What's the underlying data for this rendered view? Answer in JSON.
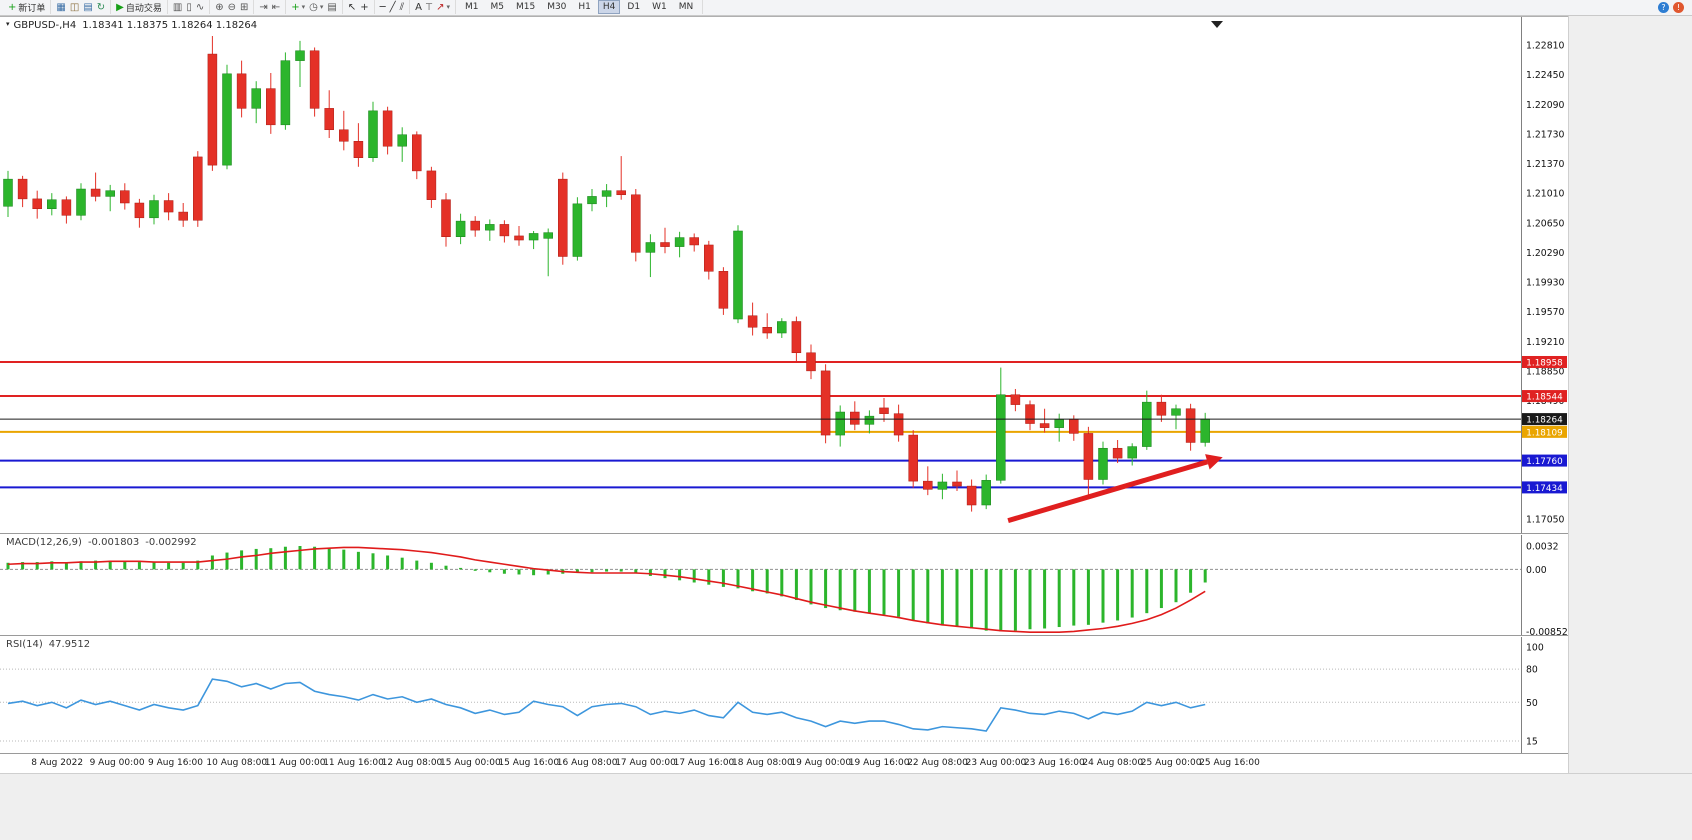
{
  "toolbar": {
    "groups": [
      {
        "items": [
          {
            "name": "new-order",
            "glyph": "+",
            "glyph_color": "#18a018",
            "label": "新订单"
          }
        ]
      },
      {
        "items": [
          {
            "name": "market-watch",
            "glyph": "▦",
            "glyph_color": "#3a6ea5"
          },
          {
            "name": "navigator",
            "glyph": "◫",
            "glyph_color": "#8a6d3b"
          },
          {
            "name": "terminal",
            "glyph": "▤",
            "glyph_color": "#3a6ea5"
          },
          {
            "name": "refresh",
            "glyph": "↻",
            "glyph_color": "#2e8b57"
          }
        ]
      },
      {
        "items": [
          {
            "name": "autotrading",
            "glyph": "▶",
            "glyph_color": "#18a018",
            "label": "自动交易"
          }
        ]
      },
      {
        "items": [
          {
            "name": "bar-chart",
            "glyph": "▥",
            "glyph_color": "#555555"
          },
          {
            "name": "candlestick-chart",
            "glyph": "▯",
            "glyph_color": "#555555"
          },
          {
            "name": "line-chart",
            "glyph": "∿",
            "glyph_color": "#555555"
          }
        ]
      },
      {
        "items": [
          {
            "name": "zoom-in",
            "glyph": "⊕",
            "glyph_color": "#555555"
          },
          {
            "name": "zoom-out",
            "glyph": "⊖",
            "glyph_color": "#555555"
          },
          {
            "name": "tile-windows",
            "glyph": "⊞",
            "glyph_color": "#555555"
          }
        ]
      },
      {
        "items": [
          {
            "name": "auto-scroll",
            "glyph": "⇥",
            "glyph_color": "#555555"
          },
          {
            "name": "chart-shift",
            "glyph": "⇤",
            "glyph_color": "#555555"
          }
        ]
      },
      {
        "items": [
          {
            "name": "indicators",
            "glyph": "+",
            "glyph_color": "#18a018",
            "caret": true
          },
          {
            "name": "periods",
            "glyph": "◷",
            "glyph_color": "#555555",
            "caret": true
          },
          {
            "name": "templates",
            "glyph": "▤",
            "glyph_color": "#555555"
          }
        ]
      },
      {
        "items": [
          {
            "name": "cursor",
            "glyph": "↖",
            "glyph_color": "#333333"
          },
          {
            "name": "crosshair",
            "glyph": "+",
            "glyph_color": "#333333"
          }
        ]
      },
      {
        "items": [
          {
            "name": "horizontal-line",
            "glyph": "─",
            "glyph_color": "#333333"
          },
          {
            "name": "trendline",
            "glyph": "╱",
            "glyph_color": "#333333"
          },
          {
            "name": "equidistant-channel",
            "glyph": "⫽",
            "glyph_color": "#333333"
          }
        ]
      },
      {
        "items": [
          {
            "name": "text",
            "glyph": "A",
            "glyph_color": "#333333"
          },
          {
            "name": "text-label",
            "glyph": "T",
            "glyph_color": "#888888"
          },
          {
            "name": "arrows",
            "glyph": "↗",
            "glyph_color": "#bb2222",
            "caret": true
          }
        ]
      },
      {
        "timeframes": true
      },
      {
        "align": "right",
        "items": [
          {
            "name": "community",
            "glyph": "?",
            "glyph_color": "#ffffff",
            "circle": "#2d7dd2"
          },
          {
            "name": "live-update",
            "glyph": "!",
            "glyph_color": "#ffffff",
            "circle": "#e0572f"
          }
        ]
      }
    ],
    "timeframes": [
      "M1",
      "M5",
      "M15",
      "M30",
      "H1",
      "H4",
      "D1",
      "W1",
      "MN"
    ],
    "active_timeframe": "H4"
  },
  "price_chart": {
    "marker_glyph": "▾",
    "symbol_period": "GBPUSD-,H4",
    "ohlc": "1.18341 1.18375 1.18264 1.18264"
  },
  "indicators": {
    "macd": {
      "label": "MACD(12,26,9)",
      "value_main": "-0.001803",
      "value_signal": "-0.002992"
    },
    "rsi": {
      "label": "RSI(14)",
      "value": "47.9512"
    }
  },
  "chart_data": [
    {
      "type": "candlestick",
      "title": "GBPUSD- H4",
      "x_labels": [
        "8 Aug 2022",
        "9 Aug 00:00",
        "9 Aug 16:00",
        "10 Aug 08:00",
        "11 Aug 00:00",
        "11 Aug 16:00",
        "12 Aug 08:00",
        "15 Aug 00:00",
        "15 Aug 16:00",
        "16 Aug 08:00",
        "17 Aug 00:00",
        "17 Aug 16:00",
        "18 Aug 08:00",
        "19 Aug 00:00",
        "19 Aug 16:00",
        "22 Aug 08:00",
        "23 Aug 00:00",
        "23 Aug 16:00",
        "24 Aug 08:00",
        "25 Aug 00:00",
        "25 Aug 16:00"
      ],
      "x_label_start": 2,
      "x_label_step": 4,
      "y_ticks": [
        1.2281,
        1.2245,
        1.2209,
        1.2173,
        1.2137,
        1.2101,
        1.2065,
        1.2029,
        1.1993,
        1.1957,
        1.1921,
        1.1885,
        1.1849,
        1.1813,
        1.1777,
        1.1741,
        1.1705
      ],
      "up_color": "#2cb52c",
      "down_color": "#e43127",
      "up_stroke": "#17801a",
      "down_stroke": "#aa1a12",
      "candles": [
        [
          1.2085,
          1.2128,
          1.2072,
          1.2118
        ],
        [
          1.2118,
          1.2122,
          1.2084,
          1.2094
        ],
        [
          1.2094,
          1.2104,
          1.207,
          1.2082
        ],
        [
          1.2082,
          1.2101,
          1.2074,
          1.2093
        ],
        [
          1.2093,
          1.2097,
          1.2064,
          1.2074
        ],
        [
          1.2074,
          1.2113,
          1.2068,
          1.2106
        ],
        [
          1.2106,
          1.2126,
          1.2091,
          1.2097
        ],
        [
          1.2097,
          1.2111,
          1.2079,
          1.2104
        ],
        [
          1.2104,
          1.2113,
          1.2081,
          1.2089
        ],
        [
          1.2089,
          1.2094,
          1.2059,
          1.2071
        ],
        [
          1.2071,
          1.2099,
          1.2063,
          1.2092
        ],
        [
          1.2092,
          1.2101,
          1.2068,
          1.2078
        ],
        [
          1.2078,
          1.2089,
          1.206,
          1.2068
        ],
        [
          1.2145,
          1.2152,
          1.206,
          1.2068
        ],
        [
          1.227,
          1.2292,
          1.2128,
          1.2135
        ],
        [
          1.2135,
          1.2257,
          1.213,
          1.2246
        ],
        [
          1.2246,
          1.2262,
          1.2193,
          1.2204
        ],
        [
          1.2204,
          1.2237,
          1.2186,
          1.2228
        ],
        [
          1.2228,
          1.2247,
          1.2173,
          1.2184
        ],
        [
          1.2184,
          1.2272,
          1.2178,
          1.2262
        ],
        [
          1.2262,
          1.2286,
          1.223,
          1.2274
        ],
        [
          1.2274,
          1.2278,
          1.2194,
          1.2204
        ],
        [
          1.2204,
          1.2226,
          1.2168,
          1.2178
        ],
        [
          1.2178,
          1.2201,
          1.2153,
          1.2164
        ],
        [
          1.2164,
          1.2186,
          1.2133,
          1.2144
        ],
        [
          1.2144,
          1.2212,
          1.2139,
          1.2201
        ],
        [
          1.2201,
          1.2206,
          1.2148,
          1.2158
        ],
        [
          1.2158,
          1.2181,
          1.2139,
          1.2172
        ],
        [
          1.2172,
          1.2176,
          1.2118,
          1.2128
        ],
        [
          1.2128,
          1.2133,
          1.2083,
          1.2093
        ],
        [
          1.2093,
          1.2101,
          1.2036,
          1.2048
        ],
        [
          1.2048,
          1.2076,
          1.2039,
          1.2067
        ],
        [
          1.2067,
          1.2073,
          1.2048,
          1.2056
        ],
        [
          1.2056,
          1.2069,
          1.2043,
          1.2063
        ],
        [
          1.2063,
          1.2068,
          1.2041,
          1.2049
        ],
        [
          1.2049,
          1.2061,
          1.2037,
          1.2044
        ],
        [
          1.2044,
          1.2055,
          1.2033,
          1.2052
        ],
        [
          1.2046,
          1.2058,
          1.2,
          1.2053
        ],
        [
          1.2118,
          1.2126,
          1.2014,
          1.2024
        ],
        [
          1.2024,
          1.2096,
          1.2019,
          1.2088
        ],
        [
          1.2088,
          1.2106,
          1.2079,
          1.2097
        ],
        [
          1.2097,
          1.2112,
          1.2084,
          1.2104
        ],
        [
          1.2104,
          1.2146,
          1.2093,
          1.2099
        ],
        [
          1.2099,
          1.2106,
          1.2018,
          1.2029
        ],
        [
          1.2029,
          1.2051,
          1.1999,
          1.2041
        ],
        [
          1.2041,
          1.2059,
          1.2028,
          1.2036
        ],
        [
          1.2036,
          1.2054,
          1.2023,
          1.2047
        ],
        [
          1.2047,
          1.2052,
          1.203,
          1.2038
        ],
        [
          1.2038,
          1.2043,
          1.1996,
          1.2006
        ],
        [
          1.2006,
          1.2011,
          1.1953,
          1.1961
        ],
        [
          1.1948,
          1.2062,
          1.1943,
          1.2055
        ],
        [
          1.1952,
          1.1968,
          1.1928,
          1.1938
        ],
        [
          1.1938,
          1.1955,
          1.1924,
          1.1931
        ],
        [
          1.1931,
          1.1949,
          1.1925,
          1.1945
        ],
        [
          1.1945,
          1.1951,
          1.1897,
          1.1907
        ],
        [
          1.1907,
          1.1917,
          1.1875,
          1.1885
        ],
        [
          1.1885,
          1.1893,
          1.1797,
          1.1807
        ],
        [
          1.1807,
          1.1843,
          1.1793,
          1.1835
        ],
        [
          1.1835,
          1.1848,
          1.1813,
          1.182
        ],
        [
          1.182,
          1.1837,
          1.1809,
          1.183
        ],
        [
          1.184,
          1.1852,
          1.1823,
          1.1833
        ],
        [
          1.1833,
          1.1844,
          1.1799,
          1.1807
        ],
        [
          1.1807,
          1.1813,
          1.1743,
          1.1751
        ],
        [
          1.1751,
          1.1769,
          1.1734,
          1.1741
        ],
        [
          1.1741,
          1.176,
          1.1729,
          1.175
        ],
        [
          1.175,
          1.1764,
          1.1739,
          1.1745
        ],
        [
          1.1745,
          1.1753,
          1.1714,
          1.1722
        ],
        [
          1.1722,
          1.1759,
          1.1717,
          1.1752
        ],
        [
          1.1752,
          1.1889,
          1.1748,
          1.1856
        ],
        [
          1.1856,
          1.1863,
          1.1836,
          1.1844
        ],
        [
          1.1844,
          1.1849,
          1.1813,
          1.1821
        ],
        [
          1.1821,
          1.1839,
          1.181,
          1.1816
        ],
        [
          1.1816,
          1.1833,
          1.1799,
          1.1826
        ],
        [
          1.1826,
          1.1831,
          1.18,
          1.1809
        ],
        [
          1.1809,
          1.1817,
          1.1729,
          1.1753
        ],
        [
          1.1753,
          1.1799,
          1.1747,
          1.1791
        ],
        [
          1.1791,
          1.1801,
          1.1773,
          1.1779
        ],
        [
          1.1779,
          1.1797,
          1.177,
          1.1793
        ],
        [
          1.1793,
          1.1861,
          1.1789,
          1.1847
        ],
        [
          1.1847,
          1.1856,
          1.1823,
          1.1831
        ],
        [
          1.1831,
          1.1844,
          1.1814,
          1.1839
        ],
        [
          1.1839,
          1.1845,
          1.1788,
          1.1798
        ],
        [
          1.1798,
          1.1834,
          1.1793,
          1.18264
        ]
      ],
      "hlines": [
        {
          "price": 1.18958,
          "color": "#e02222",
          "label": "1.18958"
        },
        {
          "price": 1.18544,
          "color": "#e02222",
          "label": "1.18544"
        },
        {
          "price": 1.18264,
          "color": "#1a1a1a",
          "label": "1.18264",
          "current": true
        },
        {
          "price": 1.18109,
          "color": "#eaa500",
          "label": "1.18109"
        },
        {
          "price": 1.1776,
          "color": "#1919d2",
          "label": "1.17760"
        },
        {
          "price": 1.17434,
          "color": "#1919d2",
          "label": "1.17434"
        }
      ],
      "arrow": {
        "from_index": 68.5,
        "from_price": 1.1703,
        "to_index": 83.2,
        "to_price": 1.178,
        "color": "#e01f1f"
      }
    },
    {
      "type": "bar",
      "name": "MACD(12,26,9)",
      "bar_color": "#2cb52c",
      "signal_color": "#e01b1b",
      "current_values": [
        -0.001803,
        -0.002992
      ],
      "y_ticks": [
        {
          "v": 0.0032,
          "label": "0.0032"
        },
        {
          "v": 0,
          "label": "0.00"
        },
        {
          "v": -0.008529,
          "label": "-0.008529"
        }
      ],
      "values": [
        0.0009,
        0.001,
        0.001,
        0.0011,
        0.001,
        0.0011,
        0.0012,
        0.0012,
        0.0011,
        0.001,
        0.001,
        0.0009,
        0.0009,
        0.0012,
        0.0019,
        0.0023,
        0.0026,
        0.0028,
        0.0029,
        0.0031,
        0.0032,
        0.0031,
        0.0029,
        0.0027,
        0.0024,
        0.0022,
        0.0019,
        0.0016,
        0.0012,
        0.0009,
        0.0005,
        0.0002,
        -0.0002,
        -0.0004,
        -0.0006,
        -0.0007,
        -0.0008,
        -0.0007,
        -0.0006,
        -0.0005,
        -0.0004,
        -0.0003,
        -0.0003,
        -0.0005,
        -0.0009,
        -0.0012,
        -0.0015,
        -0.0018,
        -0.0021,
        -0.0024,
        -0.0026,
        -0.003,
        -0.0033,
        -0.0037,
        -0.0042,
        -0.0048,
        -0.0053,
        -0.0056,
        -0.0058,
        -0.006,
        -0.0062,
        -0.0065,
        -0.007,
        -0.0074,
        -0.0077,
        -0.0079,
        -0.0081,
        -0.0084,
        -0.0085,
        -0.0084,
        -0.0082,
        -0.0081,
        -0.0079,
        -0.0077,
        -0.0076,
        -0.0073,
        -0.007,
        -0.0066,
        -0.006,
        -0.0053,
        -0.0045,
        -0.0032,
        -0.0018
      ],
      "signal": [
        0.0007,
        0.0008,
        0.0008,
        0.0009,
        0.0009,
        0.001,
        0.001,
        0.0011,
        0.0011,
        0.0011,
        0.001,
        0.001,
        0.001,
        0.001,
        0.0012,
        0.0014,
        0.0017,
        0.0019,
        0.0022,
        0.0024,
        0.0026,
        0.0028,
        0.0029,
        0.003,
        0.003,
        0.0029,
        0.0028,
        0.0027,
        0.0025,
        0.0023,
        0.002,
        0.0017,
        0.0013,
        0.001,
        0.0007,
        0.0004,
        0.0001,
        -0.0001,
        -0.0003,
        -0.0004,
        -0.0005,
        -0.0005,
        -0.0005,
        -0.0005,
        -0.0006,
        -0.0008,
        -0.001,
        -0.0013,
        -0.0016,
        -0.0019,
        -0.0023,
        -0.0027,
        -0.0031,
        -0.0035,
        -0.004,
        -0.0045,
        -0.0049,
        -0.0053,
        -0.0057,
        -0.006,
        -0.0063,
        -0.0066,
        -0.007,
        -0.0073,
        -0.0076,
        -0.0078,
        -0.008,
        -0.0082,
        -0.0084,
        -0.0085,
        -0.0086,
        -0.0086,
        -0.0086,
        -0.0085,
        -0.0083,
        -0.0081,
        -0.0078,
        -0.0074,
        -0.0069,
        -0.0062,
        -0.0053,
        -0.0042,
        -0.003
      ]
    },
    {
      "type": "line",
      "name": "RSI(14)",
      "line_color": "#3d96dd",
      "current_value": 47.9512,
      "levels": [
        80,
        50,
        15
      ],
      "y_ticks": [
        {
          "v": 100,
          "label": "100"
        },
        {
          "v": 80,
          "label": "80"
        },
        {
          "v": 50,
          "label": "50"
        },
        {
          "v": 15,
          "label": "15"
        }
      ],
      "values": [
        49,
        51,
        47,
        50,
        45,
        52,
        48,
        51,
        47,
        43,
        48,
        45,
        43,
        47,
        71,
        69,
        64,
        67,
        62,
        67,
        68,
        60,
        57,
        55,
        52,
        57,
        53,
        55,
        50,
        53,
        48,
        45,
        40,
        43,
        39,
        41,
        51,
        48,
        46,
        38,
        46,
        48,
        49,
        46,
        39,
        42,
        40,
        43,
        38,
        36,
        50,
        41,
        39,
        41,
        36,
        33,
        28,
        33,
        31,
        33,
        33,
        30,
        26,
        25,
        28,
        27,
        26,
        24,
        45,
        43,
        40,
        39,
        42,
        40,
        35,
        41,
        39,
        42,
        50,
        47,
        50,
        45,
        48
      ]
    }
  ]
}
